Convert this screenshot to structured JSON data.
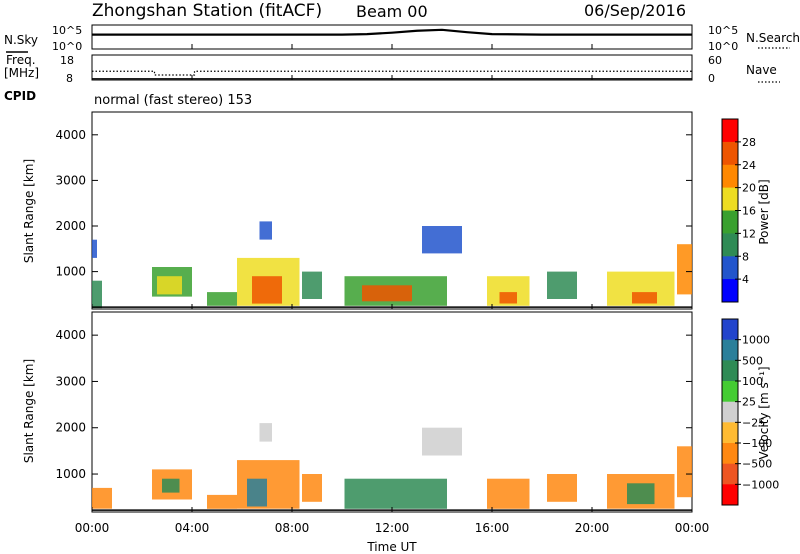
{
  "header": {
    "title": "Zhongshan Station (fitACF)",
    "beam": "Beam 00",
    "date": "06/Sep/2016"
  },
  "chart_data": [
    {
      "type": "line",
      "panel": "noise",
      "left_label": "N.Sky",
      "left_ticks": [
        "10^5",
        "10^0"
      ],
      "right_label": "N.Search",
      "right_ticks": [
        "10^5",
        "10^0"
      ],
      "series": [
        {
          "x": [
            0,
            2,
            4,
            6,
            8,
            10,
            11,
            12,
            13,
            14,
            15,
            16,
            18,
            20,
            22,
            24
          ],
          "values": [
            3.0,
            3.0,
            3.0,
            3.0,
            3.0,
            3.0,
            3.1,
            3.4,
            3.8,
            4.0,
            3.5,
            3.1,
            3.0,
            3.0,
            3.0,
            3.0
          ]
        }
      ]
    },
    {
      "type": "line",
      "panel": "frequency",
      "left_label": "Freq.",
      "left_unit": "[MHz]",
      "left_ticks": [
        "18",
        "8"
      ],
      "right_label": "Nave",
      "right_ticks": [
        "60",
        "0"
      ],
      "series": [
        {
          "x": [
            0,
            2.5,
            2.5,
            4.1,
            4.1,
            24
          ],
          "values": [
            11.5,
            11.5,
            10.0,
            10.0,
            11.5,
            11.5
          ]
        },
        {
          "x": [
            0,
            24
          ],
          "values": [
            8.5,
            8.5
          ]
        }
      ]
    },
    {
      "type": "text",
      "panel": "cpid",
      "label": "CPID",
      "text": "normal (fast stereo) 153"
    },
    {
      "type": "heatmap",
      "panel": "power",
      "ylabel": "Slant Range [km]",
      "ylim": [
        180,
        4500
      ],
      "yticks": [
        "1000",
        "2000",
        "3000",
        "4000"
      ],
      "colorbar": {
        "label": "Power [dB]",
        "ticks": [
          "4",
          "8",
          "12",
          "16",
          "20",
          "24",
          "28"
        ],
        "colors": [
          "#0000ff",
          "#2255cc",
          "#2f8b55",
          "#39a02f",
          "#eedd22",
          "#ff8800",
          "#ee5500",
          "#ff0000"
        ]
      },
      "patches": [
        {
          "t": [
            0.0,
            0.4
          ],
          "r": [
            200,
            800
          ],
          "level": 2
        },
        {
          "t": [
            0.0,
            0.2
          ],
          "r": [
            1300,
            1700
          ],
          "level": 1
        },
        {
          "t": [
            2.4,
            4.0
          ],
          "r": [
            450,
            1100
          ],
          "level": 3
        },
        {
          "t": [
            2.6,
            3.6
          ],
          "r": [
            500,
            900
          ],
          "level": 4
        },
        {
          "t": [
            4.6,
            5.8
          ],
          "r": [
            250,
            550
          ],
          "level": 3
        },
        {
          "t": [
            5.8,
            8.3
          ],
          "r": [
            250,
            1300
          ],
          "level": 4
        },
        {
          "t": [
            6.4,
            7.6
          ],
          "r": [
            300,
            900
          ],
          "level": 6
        },
        {
          "t": [
            6.7,
            7.2
          ],
          "r": [
            1700,
            2100
          ],
          "level": 1
        },
        {
          "t": [
            8.4,
            9.2
          ],
          "r": [
            400,
            1000
          ],
          "level": 2
        },
        {
          "t": [
            10.1,
            14.2
          ],
          "r": [
            250,
            900
          ],
          "level": 3
        },
        {
          "t": [
            10.8,
            12.8
          ],
          "r": [
            350,
            700
          ],
          "level": 6
        },
        {
          "t": [
            13.2,
            14.8
          ],
          "r": [
            1400,
            2000
          ],
          "level": 1
        },
        {
          "t": [
            15.8,
            17.5
          ],
          "r": [
            250,
            900
          ],
          "level": 4
        },
        {
          "t": [
            16.3,
            17.0
          ],
          "r": [
            300,
            550
          ],
          "level": 6
        },
        {
          "t": [
            18.2,
            19.4
          ],
          "r": [
            400,
            1000
          ],
          "level": 2
        },
        {
          "t": [
            20.6,
            23.3
          ],
          "r": [
            250,
            1000
          ],
          "level": 4
        },
        {
          "t": [
            21.6,
            22.6
          ],
          "r": [
            300,
            550
          ],
          "level": 6
        },
        {
          "t": [
            23.4,
            24.0
          ],
          "r": [
            500,
            1600
          ],
          "level": 5
        }
      ]
    },
    {
      "type": "heatmap",
      "panel": "velocity",
      "ylabel": "Slant Range [km]",
      "ylim": [
        180,
        4500
      ],
      "yticks": [
        "1000",
        "2000",
        "3000",
        "4000"
      ],
      "colorbar": {
        "label": "Velocity [m s⁻¹]",
        "ticks": [
          "1000",
          "500",
          "100",
          "25",
          "−25",
          "−100",
          "−500",
          "−1000"
        ],
        "colors": [
          "#2244cc",
          "#2a7f9a",
          "#2f8b55",
          "#44cc33",
          "#cfcfcf",
          "#ffbb33",
          "#ff8811",
          "#ee5522",
          "#ff0000"
        ]
      },
      "patches": [
        {
          "t": [
            0.0,
            0.8
          ],
          "r": [
            250,
            700
          ],
          "level": 6
        },
        {
          "t": [
            2.4,
            4.0
          ],
          "r": [
            450,
            1100
          ],
          "level": 6
        },
        {
          "t": [
            2.8,
            3.5
          ],
          "r": [
            600,
            900
          ],
          "level": 2
        },
        {
          "t": [
            4.6,
            5.8
          ],
          "r": [
            250,
            550
          ],
          "level": 6
        },
        {
          "t": [
            5.8,
            8.3
          ],
          "r": [
            250,
            1300
          ],
          "level": 6
        },
        {
          "t": [
            6.2,
            7.0
          ],
          "r": [
            300,
            900
          ],
          "level": 1
        },
        {
          "t": [
            6.7,
            7.2
          ],
          "r": [
            1700,
            2100
          ],
          "level": 4
        },
        {
          "t": [
            8.4,
            9.2
          ],
          "r": [
            400,
            1000
          ],
          "level": 6
        },
        {
          "t": [
            10.1,
            14.2
          ],
          "r": [
            250,
            900
          ],
          "level": 2
        },
        {
          "t": [
            13.2,
            14.8
          ],
          "r": [
            1400,
            2000
          ],
          "level": 4
        },
        {
          "t": [
            15.8,
            17.5
          ],
          "r": [
            250,
            900
          ],
          "level": 6
        },
        {
          "t": [
            18.2,
            19.4
          ],
          "r": [
            400,
            1000
          ],
          "level": 6
        },
        {
          "t": [
            20.6,
            23.3
          ],
          "r": [
            250,
            1000
          ],
          "level": 6
        },
        {
          "t": [
            21.4,
            22.5
          ],
          "r": [
            350,
            800
          ],
          "level": 2
        },
        {
          "t": [
            23.4,
            24.0
          ],
          "r": [
            500,
            1600
          ],
          "level": 6
        }
      ]
    }
  ],
  "xaxis": {
    "ticks": [
      "00:00",
      "04:00",
      "08:00",
      "12:00",
      "16:00",
      "20:00",
      "00:00"
    ],
    "label": "Time UT"
  }
}
